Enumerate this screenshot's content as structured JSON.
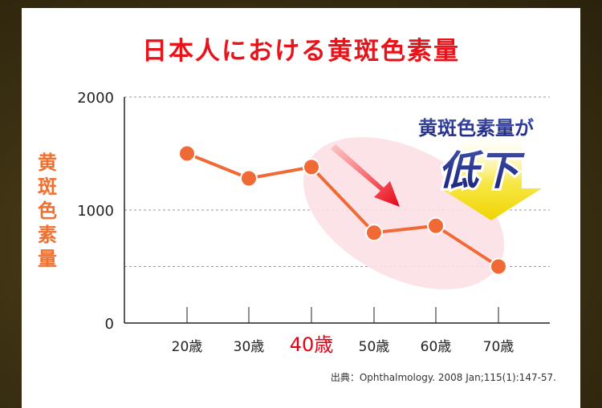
{
  "title": "日本人における黄斑色素量",
  "source": "出典：Ophthalmology. 2008 Jan;115(1):147-57.",
  "callout": {
    "line1": "黄斑色素量が",
    "line2": "低下"
  },
  "colors": {
    "title": "#e8141b",
    "series": "#f06a35",
    "highlight": "#e60012",
    "ylabel": "#f07030"
  },
  "chart_data": {
    "type": "line",
    "title": "日本人における黄斑色素量",
    "ylabel": "黄斑色素量",
    "xlabel": "",
    "categories": [
      "20歳",
      "30歳",
      "40歳",
      "50歳",
      "60歳",
      "70歳"
    ],
    "highlight_category": "40歳",
    "values": [
      1500,
      1280,
      1380,
      800,
      860,
      500
    ],
    "ylim": [
      0,
      2000
    ],
    "yticks": [
      0,
      1000,
      2000
    ],
    "grid": true,
    "legend": "none"
  }
}
